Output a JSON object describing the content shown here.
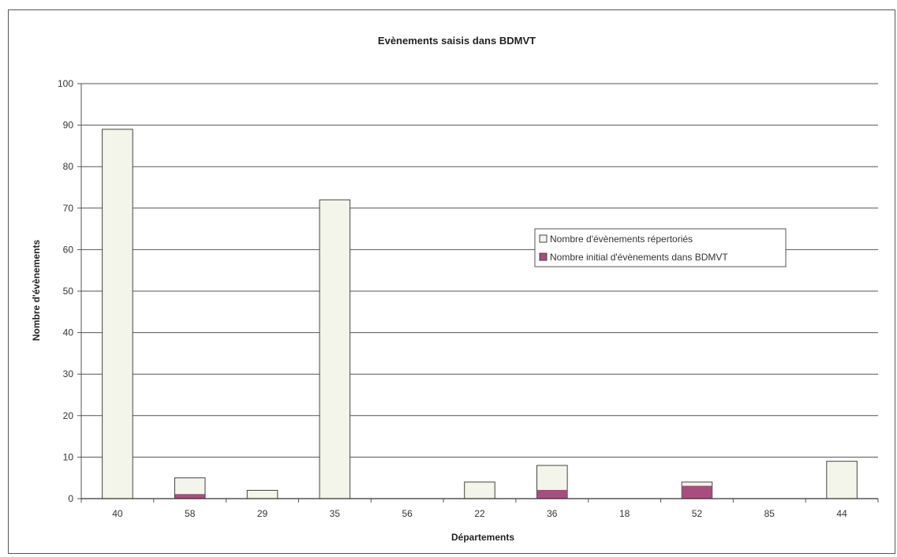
{
  "colors": {
    "series_repertories": "#f3f4ea",
    "series_initial": "#a84d7e",
    "bar_stroke": "#444444",
    "grid": "#555555"
  },
  "chart_data": {
    "type": "bar",
    "title": "Evènements saisis dans BDMVT",
    "xlabel": "Départements",
    "ylabel": "Nombre d'évènements",
    "categories": [
      "40",
      "58",
      "29",
      "35",
      "56",
      "22",
      "36",
      "18",
      "52",
      "85",
      "44"
    ],
    "ylim": [
      0,
      100
    ],
    "yticks": [
      0,
      10,
      20,
      30,
      40,
      50,
      60,
      70,
      80,
      90,
      100
    ],
    "grid": true,
    "legend_position": "center-right",
    "series": [
      {
        "name": "Nombre d'évènements répertoriés",
        "values": [
          89,
          5,
          2,
          72,
          0,
          4,
          8,
          0,
          4,
          0,
          9
        ]
      },
      {
        "name": "Nombre initial d'évènements dans BDMVT",
        "values": [
          0,
          1,
          0,
          0,
          0,
          0,
          2,
          0,
          3,
          0,
          0
        ]
      }
    ]
  }
}
